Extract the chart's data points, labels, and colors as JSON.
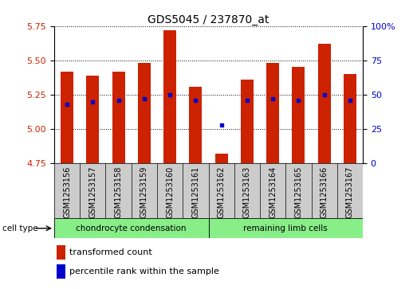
{
  "title": "GDS5045 / 237870_at",
  "samples": [
    "GSM1253156",
    "GSM1253157",
    "GSM1253158",
    "GSM1253159",
    "GSM1253160",
    "GSM1253161",
    "GSM1253162",
    "GSM1253163",
    "GSM1253164",
    "GSM1253165",
    "GSM1253166",
    "GSM1253167"
  ],
  "transformed_count": [
    5.42,
    5.39,
    5.42,
    5.48,
    5.72,
    5.31,
    4.82,
    5.36,
    5.48,
    5.45,
    5.62,
    5.4
  ],
  "percentile_rank": [
    43,
    45,
    46,
    47,
    50,
    46,
    28,
    46,
    47,
    46,
    50,
    46
  ],
  "ymin": 4.75,
  "ymax": 5.75,
  "yticks": [
    4.75,
    5.0,
    5.25,
    5.5,
    5.75
  ],
  "right_yticks": [
    0,
    25,
    50,
    75,
    100
  ],
  "bar_color": "#cc2200",
  "dot_color": "#0000cc",
  "sample_box_color": "#cccccc",
  "group1_label": "chondrocyte condensation",
  "group2_label": "remaining limb cells",
  "group_color": "#88ee88",
  "group1_count": 6,
  "group2_count": 6,
  "cell_type_label": "cell type",
  "legend_bar_label": "transformed count",
  "legend_dot_label": "percentile rank within the sample",
  "left_axis_color": "#cc2200",
  "right_axis_color": "#0000cc",
  "title_fontsize": 10,
  "tick_fontsize": 8,
  "bar_width": 0.5
}
